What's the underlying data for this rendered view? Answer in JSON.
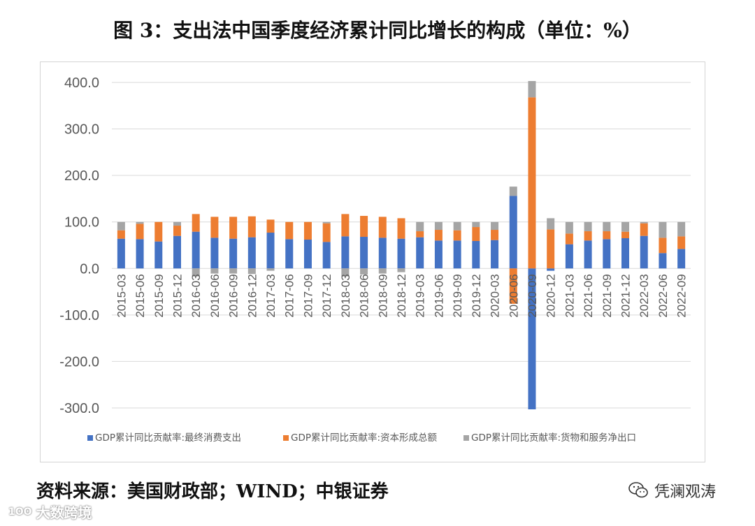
{
  "title": "图 3：支出法中国季度经济累计同比增长的构成（单位：%）",
  "source": "资料来源：美国财政部；WIND；中银证券",
  "brand": {
    "name": "凭澜观涛",
    "icon": "wechat-icon"
  },
  "watermark": {
    "logo_text": "1OO",
    "name": "大数跨境"
  },
  "colors": {
    "consumption": "#4472C4",
    "capital": "#ED7D31",
    "netexports": "#A5A5A5",
    "grid": "#D9D9D9"
  },
  "chart_data": {
    "type": "bar",
    "stacked": true,
    "categories": [
      "2015-03",
      "2015-06",
      "2015-09",
      "2015-12",
      "2016-03",
      "2016-06",
      "2016-09",
      "2016-12",
      "2017-03",
      "2017-06",
      "2017-09",
      "2017-12",
      "2018-03",
      "2018-06",
      "2018-09",
      "2018-12",
      "2019-03",
      "2019-06",
      "2019-09",
      "2019-12",
      "2020-03",
      "2020-06",
      "2020-09",
      "2020-12",
      "2021-03",
      "2021-06",
      "2021-09",
      "2021-12",
      "2022-03",
      "2022-06",
      "2022-09"
    ],
    "series": [
      {
        "name": "GDP累计同比贡献率:最终消费支出",
        "values": [
          64,
          63,
          58,
          70,
          79,
          66,
          64,
          67,
          77,
          63,
          62,
          57,
          69,
          68,
          66,
          64,
          67,
          60,
          60,
          59,
          61,
          156,
          -303,
          -5,
          52,
          60,
          63,
          65,
          70,
          33,
          42
        ]
      },
      {
        "name": "GDP累计同比贡献率:资本形成总额",
        "values": [
          18,
          33,
          42,
          22,
          38,
          45,
          47,
          45,
          28,
          37,
          38,
          40,
          48,
          45,
          45,
          44,
          13,
          23,
          22,
          30,
          22,
          -76,
          368,
          84,
          23,
          20,
          17,
          14,
          27,
          33,
          27
        ]
      },
      {
        "name": "GDP累计同比贡献率:货物和服务净出口",
        "values": [
          18,
          4,
          0,
          8,
          -17,
          -11,
          -11,
          -12,
          -5,
          0,
          0,
          3,
          -17,
          -13,
          -11,
          -8,
          20,
          17,
          18,
          11,
          17,
          20,
          35,
          24,
          25,
          20,
          20,
          21,
          3,
          34,
          31
        ]
      }
    ],
    "ylim": [
      -300,
      400
    ],
    "yticks": [
      "400.0",
      "300.0",
      "200.0",
      "100.0",
      "0.0",
      "-100.0",
      "-200.0",
      "-300.0"
    ],
    "ytick_values": [
      400,
      300,
      200,
      100,
      0,
      -100,
      -200,
      -300
    ],
    "grid": true,
    "legend_position": "bottom"
  }
}
